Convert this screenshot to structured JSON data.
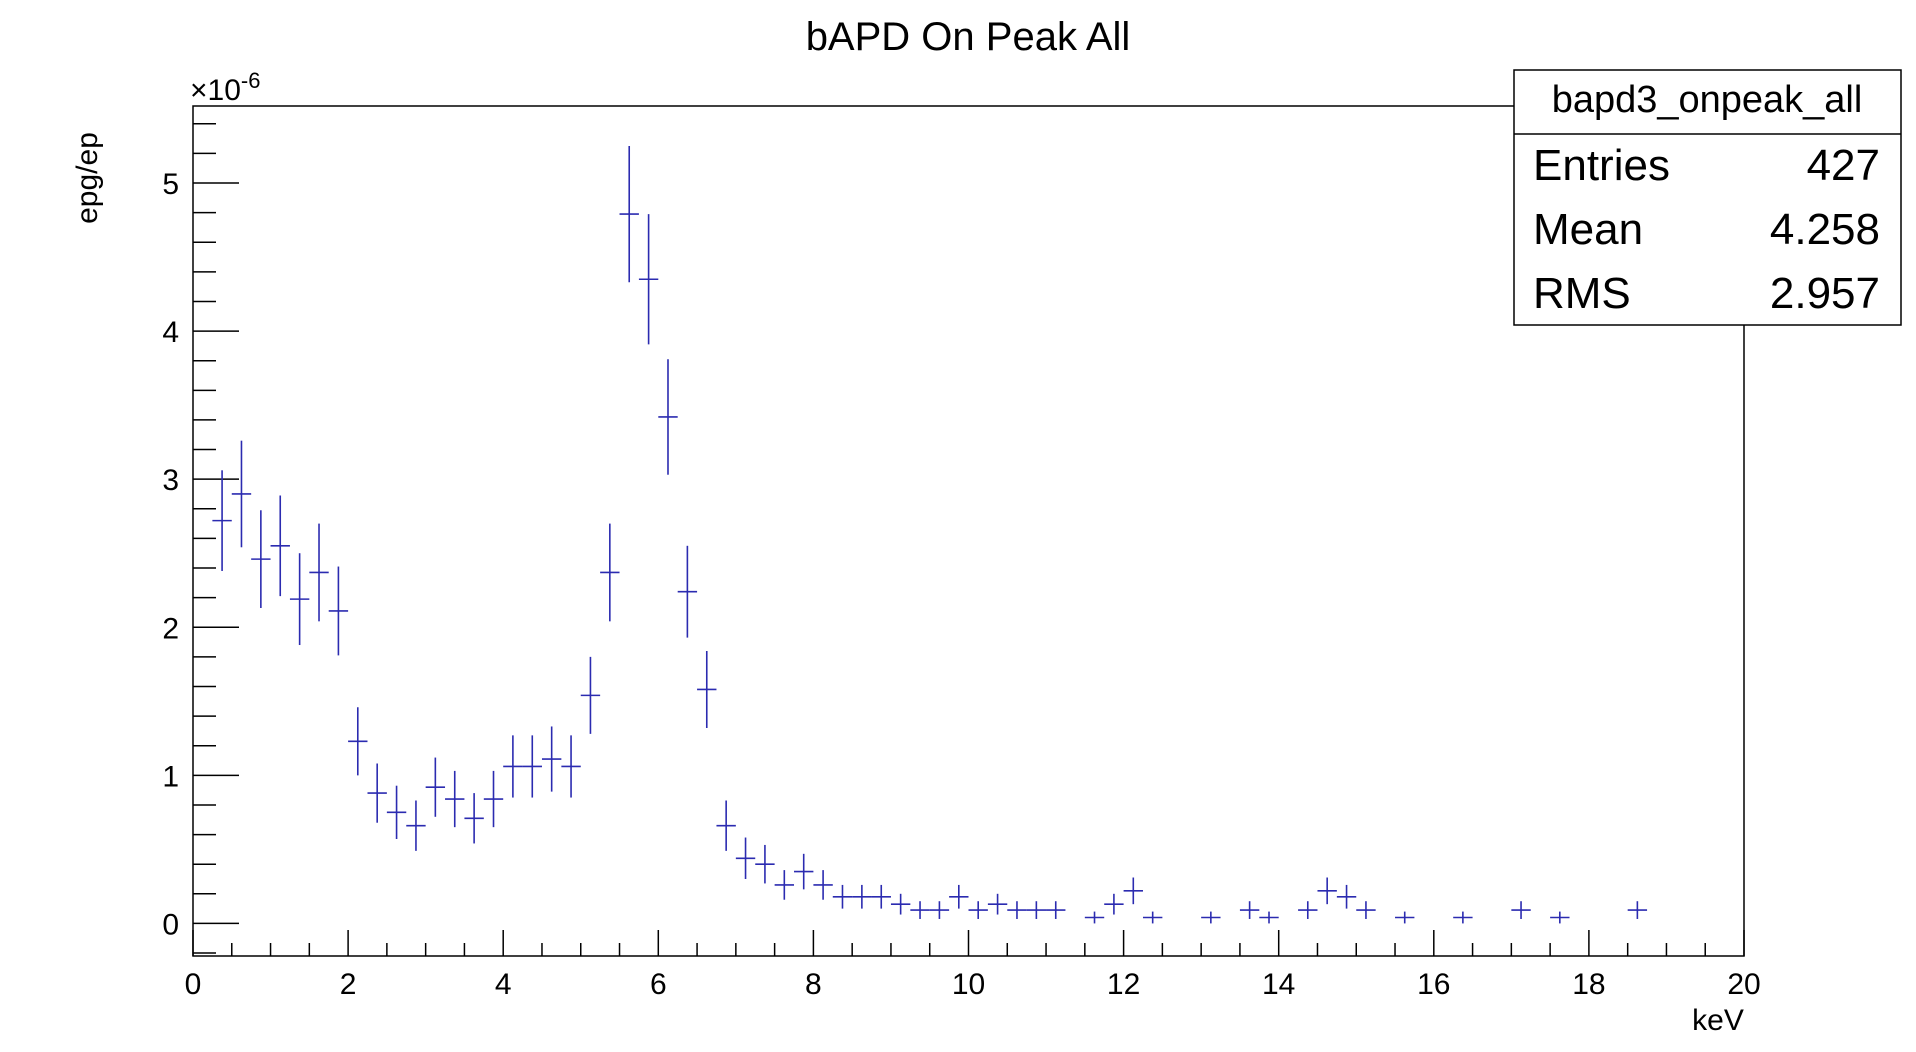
{
  "chart_data": {
    "type": "scatter",
    "title": "bAPD On Peak All",
    "xlabel": "keV",
    "ylabel": "epg/ep",
    "y_exponent_label": "×10",
    "y_exponent_power": "-6",
    "xlim": [
      0,
      20
    ],
    "ylim": [
      -0.22,
      5.52
    ],
    "x_ticks": [
      0,
      2,
      4,
      6,
      8,
      10,
      12,
      14,
      16,
      18,
      20
    ],
    "y_ticks": [
      0,
      1,
      2,
      3,
      4,
      5
    ],
    "x_tick_labels": [
      "0",
      "2",
      "4",
      "6",
      "8",
      "10",
      "12",
      "14",
      "16",
      "18",
      "20"
    ],
    "y_tick_labels": [
      "0",
      "1",
      "2",
      "3",
      "4",
      "5"
    ],
    "grid": false,
    "marker_color": "#2b2bb0",
    "bin_halfwidth": 0.125,
    "series": [
      {
        "style": "error-bars",
        "x": [
          0.375,
          0.625,
          0.875,
          1.125,
          1.375,
          1.625,
          1.875,
          2.125,
          2.375,
          2.625,
          2.875,
          3.125,
          3.375,
          3.625,
          3.875,
          4.125,
          4.375,
          4.625,
          4.875,
          5.125,
          5.375,
          5.625,
          5.875,
          6.125,
          6.375,
          6.625,
          6.875,
          7.125,
          7.375,
          7.625,
          7.875,
          8.125,
          8.375,
          8.625,
          8.875,
          9.125,
          9.375,
          9.625,
          9.875,
          10.125,
          10.375,
          10.625,
          10.875,
          11.125,
          11.625,
          11.875,
          12.125,
          12.375,
          13.125,
          13.625,
          13.875,
          14.375,
          14.625,
          14.875,
          15.125,
          15.625,
          16.375,
          17.125,
          17.625,
          18.625
        ],
        "y": [
          2.72,
          2.9,
          2.46,
          2.55,
          2.19,
          2.37,
          2.11,
          1.23,
          0.88,
          0.75,
          0.66,
          0.92,
          0.84,
          0.71,
          0.84,
          1.06,
          1.06,
          1.11,
          1.06,
          1.54,
          2.37,
          4.79,
          4.35,
          3.42,
          2.24,
          1.58,
          0.66,
          0.44,
          0.4,
          0.26,
          0.35,
          0.26,
          0.18,
          0.18,
          0.18,
          0.13,
          0.09,
          0.09,
          0.18,
          0.09,
          0.13,
          0.09,
          0.09,
          0.09,
          0.04,
          0.13,
          0.22,
          0.04,
          0.04,
          0.09,
          0.04,
          0.09,
          0.22,
          0.18,
          0.09,
          0.04,
          0.04,
          0.09,
          0.04,
          0.09
        ],
        "yerr": [
          0.34,
          0.36,
          0.33,
          0.34,
          0.31,
          0.33,
          0.3,
          0.23,
          0.2,
          0.18,
          0.17,
          0.2,
          0.19,
          0.17,
          0.19,
          0.21,
          0.21,
          0.22,
          0.21,
          0.26,
          0.33,
          0.46,
          0.44,
          0.39,
          0.31,
          0.26,
          0.17,
          0.14,
          0.13,
          0.1,
          0.12,
          0.1,
          0.08,
          0.08,
          0.08,
          0.07,
          0.06,
          0.06,
          0.08,
          0.06,
          0.07,
          0.06,
          0.06,
          0.06,
          0.04,
          0.07,
          0.09,
          0.04,
          0.04,
          0.06,
          0.04,
          0.06,
          0.09,
          0.08,
          0.06,
          0.04,
          0.04,
          0.06,
          0.04,
          0.06
        ]
      }
    ],
    "stats_box": {
      "name": "bapd3_onpeak_all",
      "rows": [
        {
          "label": "Entries",
          "value": "427"
        },
        {
          "label": "Mean",
          "value": "4.258"
        },
        {
          "label": "RMS",
          "value": "2.957"
        }
      ]
    }
  }
}
